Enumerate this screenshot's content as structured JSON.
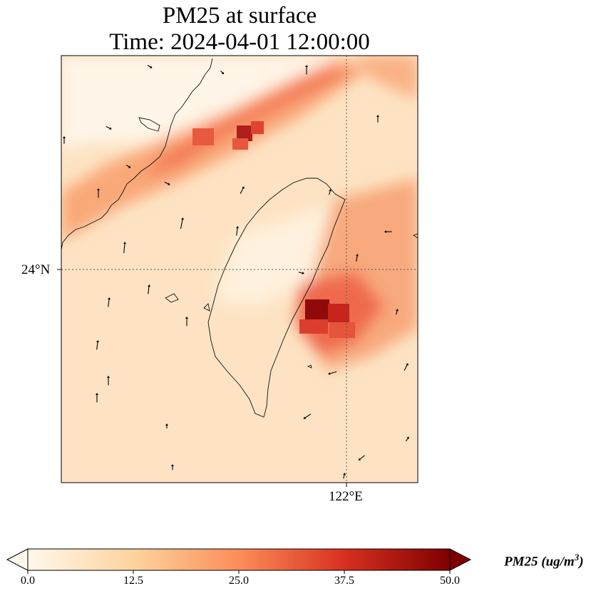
{
  "title": {
    "line1": "PM25 at surface",
    "line2": "Time: 2024-04-01 12:00:00"
  },
  "axes": {
    "lat_tick": "24°N",
    "lon_tick": "122°E",
    "gridlines": "dotted"
  },
  "colorbar": {
    "label_prefix": "PM25 (ug/m",
    "label_exp": "3",
    "label_suffix": ")",
    "ticks": [
      "0.0",
      "12.5",
      "25.0",
      "37.5",
      "50.0"
    ],
    "range": [
      0,
      50
    ],
    "colormap": "OrRd",
    "extend": "both",
    "colors": [
      "#fff7ec",
      "#fdd49e",
      "#fc8d59",
      "#d7301f",
      "#7f0000"
    ]
  },
  "map": {
    "region": "Taiwan and Taiwan Strait",
    "features": [
      "coastline",
      "wind-vectors",
      "pm25-field"
    ]
  }
}
